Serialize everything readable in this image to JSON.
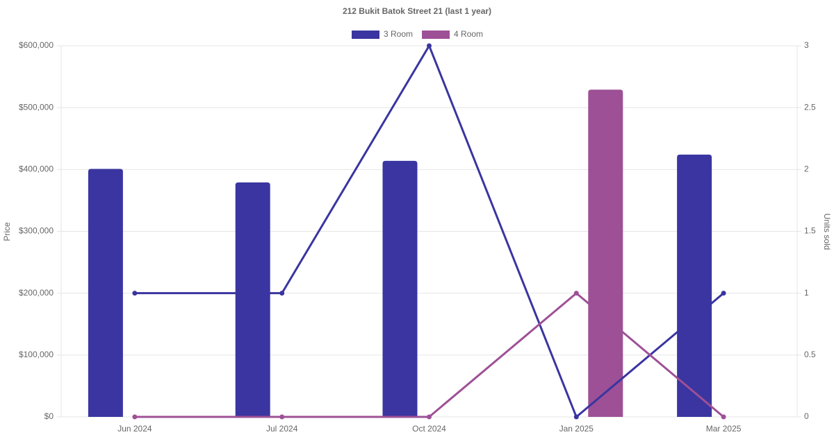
{
  "chart_data": {
    "type": "bar",
    "title": "212 Bukit Batok Street 21 (last 1 year)",
    "y_label": "Price",
    "y2_label": "Units sold",
    "categories": [
      "Jun 2024",
      "Jul 2024",
      "Oct 2024",
      "Jan 2025",
      "Mar 2025"
    ],
    "series": [
      {
        "name": "3 Room",
        "color": "#3a35a0",
        "values": [
          401000,
          379000,
          414000,
          null,
          424000
        ],
        "units": [
          1,
          1,
          3,
          0,
          1
        ]
      },
      {
        "name": "4 Room",
        "color": "#9e5096",
        "values": [
          null,
          null,
          null,
          529000,
          null
        ],
        "units": [
          0,
          0,
          0,
          1,
          0
        ]
      }
    ],
    "ylim": [
      0,
      600000
    ],
    "yticks": [
      {
        "value": 0,
        "label": "$0"
      },
      {
        "value": 100000,
        "label": "$100,000"
      },
      {
        "value": 200000,
        "label": "$200,000"
      },
      {
        "value": 300000,
        "label": "$300,000"
      },
      {
        "value": 400000,
        "label": "$400,000"
      },
      {
        "value": 500000,
        "label": "$500,000"
      },
      {
        "value": 600000,
        "label": "$600,000"
      }
    ],
    "y2lim": [
      0,
      3
    ],
    "y2ticks": [
      0,
      0.5,
      1,
      1.5,
      2,
      2.5,
      3
    ],
    "grid": true
  }
}
